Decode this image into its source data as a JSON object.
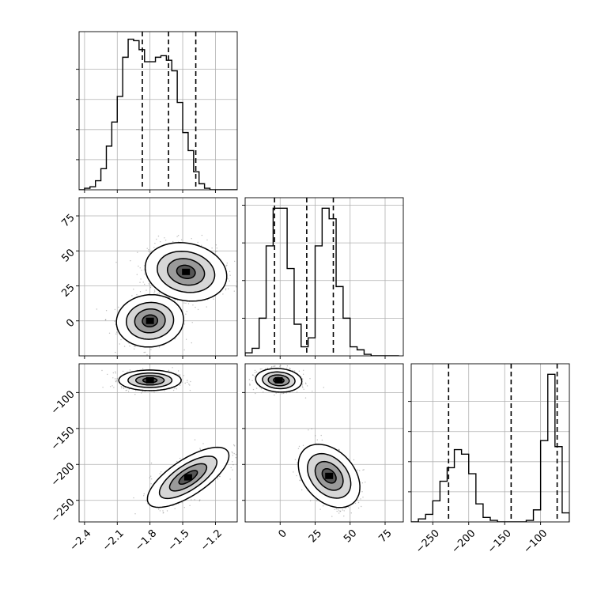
{
  "chart_data": {
    "type": "corner",
    "parameters": 3,
    "colors": {
      "line": "#000000",
      "grid": "#b0b0b0",
      "points": "#444444"
    },
    "grid": true,
    "panels": [
      {
        "id": "hist-p0",
        "type": "histogram",
        "row": 0,
        "col": 0,
        "xlim": [
          -2.45,
          -1.0
        ],
        "ylim": [
          0,
          1.05
        ],
        "xticks": [
          -2.4,
          -2.1,
          -1.8,
          -1.5,
          -1.2
        ],
        "yticks": [
          0.2,
          0.4,
          0.6,
          0.8
        ],
        "bin_edges": [
          -2.45,
          -2.4,
          -2.35,
          -2.3,
          -2.25,
          -2.2,
          -2.15,
          -2.1,
          -2.05,
          -2.0,
          -1.95,
          -1.9,
          -1.85,
          -1.8,
          -1.75,
          -1.7,
          -1.65,
          -1.6,
          -1.55,
          -1.5,
          -1.45,
          -1.4,
          -1.35,
          -1.3,
          -1.25,
          -1.2,
          -1.15,
          -1.1,
          -1.05,
          -1.0
        ],
        "counts": [
          0,
          0.01,
          0.02,
          0.06,
          0.14,
          0.29,
          0.45,
          0.62,
          0.88,
          1.0,
          0.99,
          0.93,
          0.85,
          0.85,
          0.88,
          0.89,
          0.86,
          0.79,
          0.58,
          0.38,
          0.26,
          0.12,
          0.04,
          0.01,
          0,
          0,
          0,
          0,
          0
        ],
        "quantiles": [
          -1.87,
          -1.63,
          -1.38
        ]
      },
      {
        "id": "hist-p1",
        "type": "histogram",
        "row": 1,
        "col": 1,
        "xlim": [
          -25,
          88
        ],
        "ylim": [
          0,
          1.05
        ],
        "xticks": [
          0,
          25,
          50,
          75
        ],
        "yticks": [
          0.25,
          0.5,
          0.75,
          1.0
        ],
        "bin_edges": [
          -25,
          -20,
          -15,
          -10,
          -5,
          0,
          5,
          10,
          15,
          20,
          25,
          30,
          35,
          40,
          45,
          50,
          55,
          60,
          65,
          70,
          75,
          80,
          85
        ],
        "counts": [
          0.02,
          0.05,
          0.25,
          0.73,
          0.98,
          0.98,
          0.58,
          0.21,
          0.06,
          0.12,
          0.73,
          0.98,
          0.91,
          0.46,
          0.25,
          0.06,
          0.04,
          0.01,
          0,
          0,
          0,
          0
        ],
        "quantiles": [
          -4,
          19,
          38
        ]
      },
      {
        "id": "hist-p2",
        "type": "histogram",
        "row": 2,
        "col": 2,
        "xlim": [
          -280,
          -60
        ],
        "ylim": [
          0,
          1.05
        ],
        "xticks": [
          -250,
          -200,
          -150,
          -100
        ],
        "yticks": [
          0.2,
          0.4,
          0.6,
          0.8
        ],
        "bin_edges": [
          -280,
          -270,
          -260,
          -250,
          -240,
          -230,
          -220,
          -210,
          -200,
          -190,
          -180,
          -170,
          -160,
          -150,
          -140,
          -130,
          -120,
          -110,
          -100,
          -90,
          -80,
          -70,
          -60
        ],
        "counts": [
          0,
          0.02,
          0.05,
          0.14,
          0.27,
          0.36,
          0.48,
          0.45,
          0.32,
          0.12,
          0.03,
          0.01,
          0,
          0,
          0,
          0,
          0.01,
          0.08,
          0.54,
          0.98,
          0.5,
          0.06
        ],
        "quantiles": [
          -228,
          -141,
          -77
        ]
      },
      {
        "id": "scatter-p0-p1",
        "type": "density",
        "row": 1,
        "col": 0,
        "xlim": [
          -2.45,
          -1.0
        ],
        "ylim": [
          -25,
          88
        ],
        "xticks": [
          -2.4,
          -2.1,
          -1.8,
          -1.5,
          -1.2
        ],
        "yticks": [
          0,
          25,
          50,
          75
        ],
        "clusters": [
          {
            "cx": -1.8,
            "cy": 0,
            "sx": 0.14,
            "sy": 8.5,
            "rho": 0.05
          },
          {
            "cx": -1.47,
            "cy": 35,
            "sx": 0.17,
            "sy": 9.5,
            "rho": -0.15
          }
        ]
      },
      {
        "id": "scatter-p0-p2",
        "type": "density",
        "row": 2,
        "col": 0,
        "xlim": [
          -2.45,
          -1.0
        ],
        "ylim": [
          -280,
          -60
        ],
        "xticks": [
          -2.4,
          -2.1,
          -1.8,
          -1.5,
          -1.2
        ],
        "yticks": [
          -100,
          -150,
          -200,
          -250
        ],
        "clusters": [
          {
            "cx": -1.8,
            "cy": -83,
            "sx": 0.13,
            "sy": 6.5,
            "rho": 0.0
          },
          {
            "cx": -1.45,
            "cy": -218,
            "sx": 0.17,
            "sy": 19,
            "rho": 0.72
          }
        ]
      },
      {
        "id": "scatter-p1-p2",
        "type": "density",
        "row": 2,
        "col": 1,
        "xlim": [
          -25,
          88
        ],
        "ylim": [
          -280,
          -60
        ],
        "xticks": [
          0,
          25,
          50,
          75
        ],
        "yticks": [
          -100,
          -150,
          -200,
          -250
        ],
        "clusters": [
          {
            "cx": -1,
            "cy": -83,
            "sx": 7.5,
            "sy": 7.5,
            "rho": -0.1
          },
          {
            "cx": 35,
            "cy": -216,
            "sx": 10,
            "sy": 20,
            "rho": -0.35
          }
        ]
      }
    ]
  }
}
